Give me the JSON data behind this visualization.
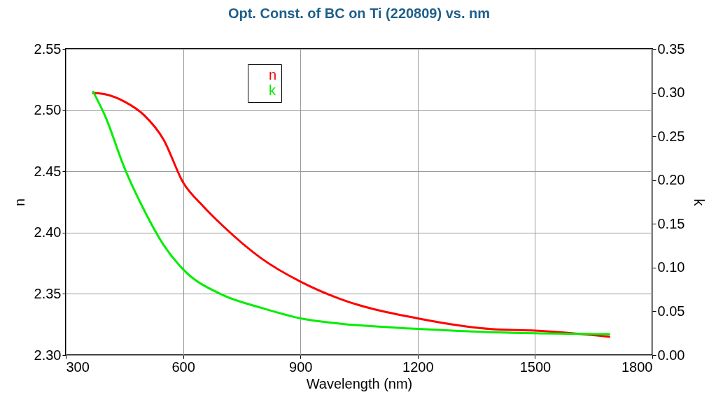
{
  "chart_data": {
    "type": "line",
    "title": "Opt. Const. of BC on Ti (220809) vs. nm",
    "xlabel": "Wavelength (nm)",
    "ylabel": "n",
    "y2label": "k",
    "series": [
      {
        "name": "n",
        "color": "#ff0000",
        "x": [
          370,
          400,
          450,
          500,
          550,
          600,
          650,
          700,
          800,
          900,
          1000,
          1200,
          1400,
          1500,
          1690
        ],
        "values": [
          2.514,
          2.513,
          2.507,
          2.496,
          2.476,
          2.441,
          2.422,
          2.406,
          2.379,
          2.36,
          2.346,
          2.33,
          2.321,
          2.32,
          2.315
        ]
      },
      {
        "name": "k",
        "color": "#00ee00",
        "axis": "y2",
        "x": [
          370,
          400,
          450,
          500,
          550,
          600,
          700,
          800,
          900,
          1000,
          1200,
          1400,
          1690
        ],
        "values": [
          0.301,
          0.274,
          0.214,
          0.166,
          0.126,
          0.098,
          0.069,
          0.054,
          0.042,
          0.036,
          0.03,
          0.026,
          0.024
        ]
      }
    ],
    "xlim": [
      300,
      1800
    ],
    "xticks": [
      300,
      600,
      900,
      1200,
      1500,
      1800
    ],
    "ylim": [
      2.3,
      2.55
    ],
    "yticks": [
      {
        "value": 2.3,
        "label": "2.30"
      },
      {
        "value": 2.35,
        "label": "2.35"
      },
      {
        "value": 2.4,
        "label": "2.40"
      },
      {
        "value": 2.45,
        "label": "2.45"
      },
      {
        "value": 2.5,
        "label": "2.50"
      },
      {
        "value": 2.55,
        "label": "2.55"
      }
    ],
    "y2lim": [
      0,
      0.35
    ],
    "y2ticks": [
      {
        "value": 0,
        "label": "0.00"
      },
      {
        "value": 0.05,
        "label": "0.05"
      },
      {
        "value": 0.1,
        "label": "0.10"
      },
      {
        "value": 0.15,
        "label": "0.15"
      },
      {
        "value": 0.2,
        "label": "0.20"
      },
      {
        "value": 0.25,
        "label": "0.25"
      },
      {
        "value": 0.3,
        "label": "0.30"
      },
      {
        "value": 0.35,
        "label": "0.35"
      }
    ],
    "grid": true,
    "legend": "top left",
    "marker": "none",
    "line_style": "solid"
  }
}
